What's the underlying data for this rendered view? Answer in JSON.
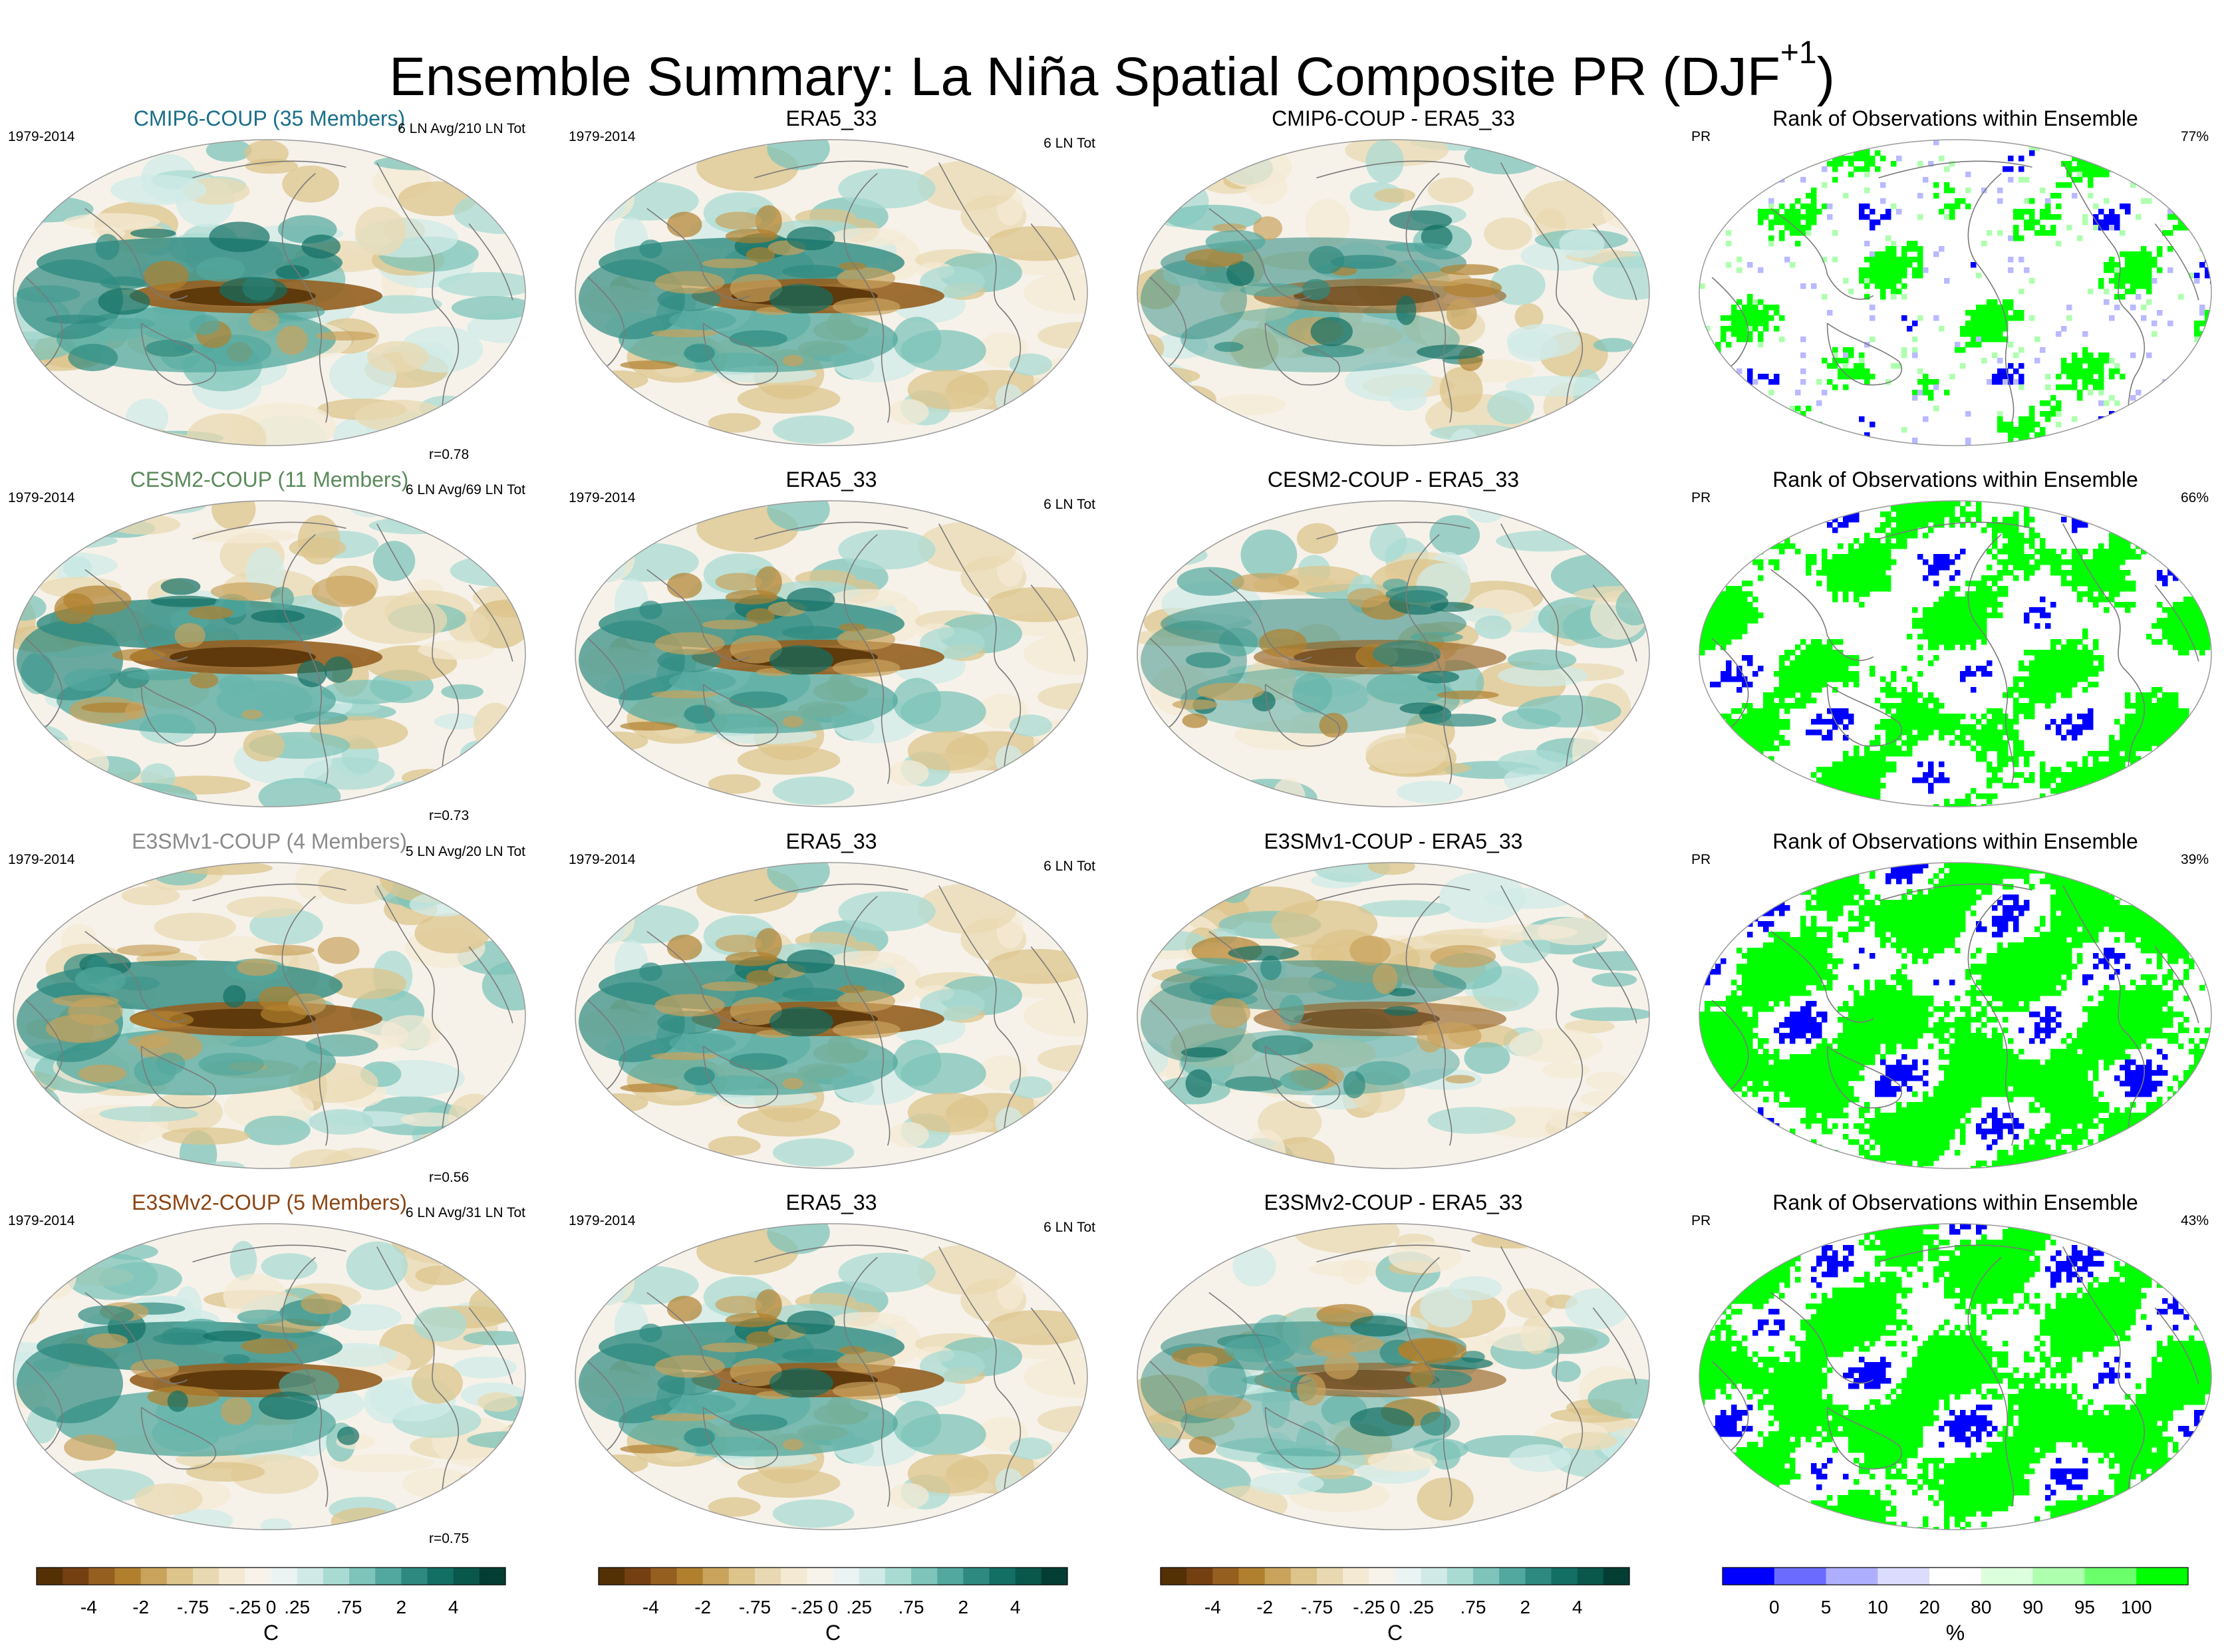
{
  "figure": {
    "title_main": "Ensemble Summary: La Niña Spatial Composite PR (DJF",
    "title_sup": "+1",
    "title_end": ")"
  },
  "rows": [
    {
      "model_title": "CMIP6-COUP (35 Members)",
      "model_color": "#1a6f8a",
      "period": "1979-2014",
      "events": "6 LN Avg/210 LN Tot",
      "r": "r=0.78",
      "obs_title": "ERA5_33",
      "obs_period": "1979-2014",
      "obs_events": "6 LN Tot",
      "diff_title": "CMIP6-COUP - ERA5_33",
      "rank_title": "Rank of Observations within Ensemble",
      "rank_var": "PR",
      "rank_pct": "77%",
      "rank_density": 0.2
    },
    {
      "model_title": "CESM2-COUP (11 Members)",
      "model_color": "#5b8a5b",
      "period": "1979-2014",
      "events": "6 LN Avg/69 LN Tot",
      "r": "r=0.73",
      "obs_title": "ERA5_33",
      "obs_period": "1979-2014",
      "obs_events": "6 LN Tot",
      "diff_title": "CESM2-COUP - ERA5_33",
      "rank_title": "Rank of Observations within Ensemble",
      "rank_var": "PR",
      "rank_pct": "66%",
      "rank_density": 0.55
    },
    {
      "model_title": "E3SMv1-COUP (4 Members)",
      "model_color": "#8a8a8a",
      "period": "1979-2014",
      "events": "5 LN Avg/20 LN Tot",
      "r": "r=0.56",
      "obs_title": "ERA5_33",
      "obs_period": "1979-2014",
      "obs_events": "6 LN Tot",
      "diff_title": "E3SMv1-COUP - ERA5_33",
      "rank_title": "Rank of Observations within Ensemble",
      "rank_var": "PR",
      "rank_pct": "39%",
      "rank_density": 0.8
    },
    {
      "model_title": "E3SMv2-COUP (5 Members)",
      "model_color": "#8b4513",
      "period": "1979-2014",
      "events": "6 LN Avg/31 LN Tot",
      "r": "r=0.75",
      "obs_title": "ERA5_33",
      "obs_period": "1979-2014",
      "obs_events": "6 LN Tot",
      "diff_title": "E3SMv2-COUP - ERA5_33",
      "rank_title": "Rank of Observations within Ensemble",
      "rank_var": "PR",
      "rank_pct": "43%",
      "rank_density": 0.8
    }
  ],
  "colorbars": {
    "brbg": {
      "colors": [
        "#543005",
        "#744012",
        "#955f20",
        "#b0802e",
        "#c9a35c",
        "#dcc48b",
        "#e9d9b2",
        "#f4ead4",
        "#f7f3ea",
        "#ebf4f3",
        "#d0ebe7",
        "#a9dbd3",
        "#7ec4ba",
        "#52a89e",
        "#2e8a80",
        "#136f64",
        "#0a574c",
        "#033d33"
      ],
      "tick_labels": [
        "-4",
        "-2",
        "-.75",
        "-.25",
        "0",
        ".25",
        ".75",
        "2",
        "4"
      ],
      "tick_index": [
        2,
        4,
        6,
        8,
        9,
        10,
        12,
        14,
        16
      ],
      "unit": "C"
    },
    "rank": {
      "colors": [
        "#0000ff",
        "#6b6bff",
        "#aeaeff",
        "#dcdcff",
        "#ffffff",
        "#dcffdc",
        "#aeffae",
        "#6bff6b",
        "#00ff00"
      ],
      "tick_labels": [
        "0",
        "5",
        "10",
        "20",
        "80",
        "90",
        "95",
        "100"
      ],
      "tick_index": [
        1,
        2,
        3,
        4,
        5,
        6,
        7,
        8
      ],
      "unit": "%"
    }
  },
  "palette": {
    "land_line": "#7a7a7a",
    "map_border": "#9a9a9a",
    "neutral_fill": "#f6f2ea"
  }
}
